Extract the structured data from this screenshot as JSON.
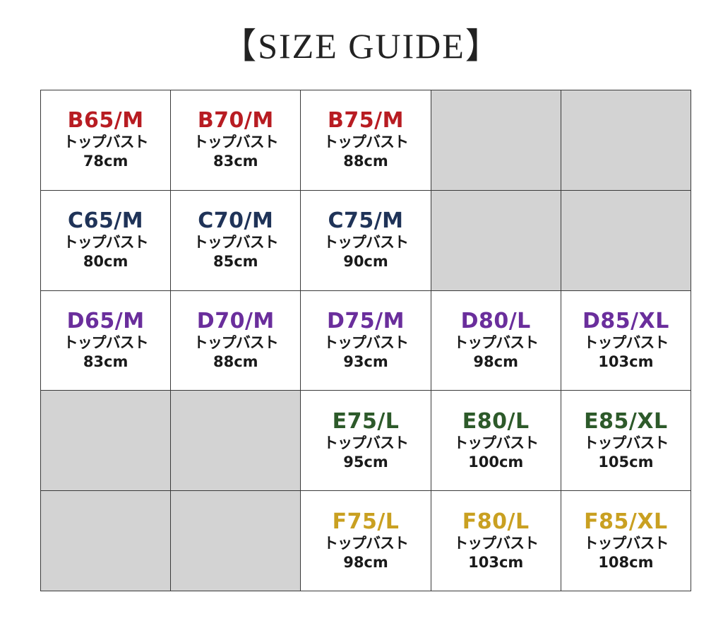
{
  "title": "【SIZE GUIDE】",
  "colors": {
    "B": "#b81c22",
    "C": "#1f3358",
    "D": "#6a2e9c",
    "E": "#2d5a2a",
    "F": "#c9a021",
    "empty_cell": "#d3d3d3"
  },
  "rows": [
    {
      "cells": [
        {
          "size": "B65/M",
          "label": "トップバスト",
          "value": "78cm",
          "color": "#b81c22"
        },
        {
          "size": "B70/M",
          "label": "トップバスト",
          "value": "83cm",
          "color": "#b81c22"
        },
        {
          "size": "B75/M",
          "label": "トップバスト",
          "value": "88cm",
          "color": "#b81c22"
        },
        null,
        null
      ]
    },
    {
      "cells": [
        {
          "size": "C65/M",
          "label": "トップバスト",
          "value": "80cm",
          "color": "#1f3358"
        },
        {
          "size": "C70/M",
          "label": "トップバスト",
          "value": "85cm",
          "color": "#1f3358"
        },
        {
          "size": "C75/M",
          "label": "トップバスト",
          "value": "90cm",
          "color": "#1f3358"
        },
        null,
        null
      ]
    },
    {
      "cells": [
        {
          "size": "D65/M",
          "label": "トップバスト",
          "value": "83cm",
          "color": "#6a2e9c"
        },
        {
          "size": "D70/M",
          "label": "トップバスト",
          "value": "88cm",
          "color": "#6a2e9c"
        },
        {
          "size": "D75/M",
          "label": "トップバスト",
          "value": "93cm",
          "color": "#6a2e9c"
        },
        {
          "size": "D80/L",
          "label": "トップバスト",
          "value": "98cm",
          "color": "#6a2e9c"
        },
        {
          "size": "D85/XL",
          "label": "トップバスト",
          "value": "103cm",
          "color": "#6a2e9c"
        }
      ]
    },
    {
      "cells": [
        null,
        null,
        {
          "size": "E75/L",
          "label": "トップバスト",
          "value": "95cm",
          "color": "#2d5a2a"
        },
        {
          "size": "E80/L",
          "label": "トップバスト",
          "value": "100cm",
          "color": "#2d5a2a"
        },
        {
          "size": "E85/XL",
          "label": "トップバスト",
          "value": "105cm",
          "color": "#2d5a2a"
        }
      ]
    },
    {
      "cells": [
        null,
        null,
        {
          "size": "F75/L",
          "label": "トップバスト",
          "value": "98cm",
          "color": "#c9a021"
        },
        {
          "size": "F80/L",
          "label": "トップバスト",
          "value": "103cm",
          "color": "#c9a021"
        },
        {
          "size": "F85/XL",
          "label": "トップバスト",
          "value": "108cm",
          "color": "#c9a021"
        }
      ]
    }
  ]
}
